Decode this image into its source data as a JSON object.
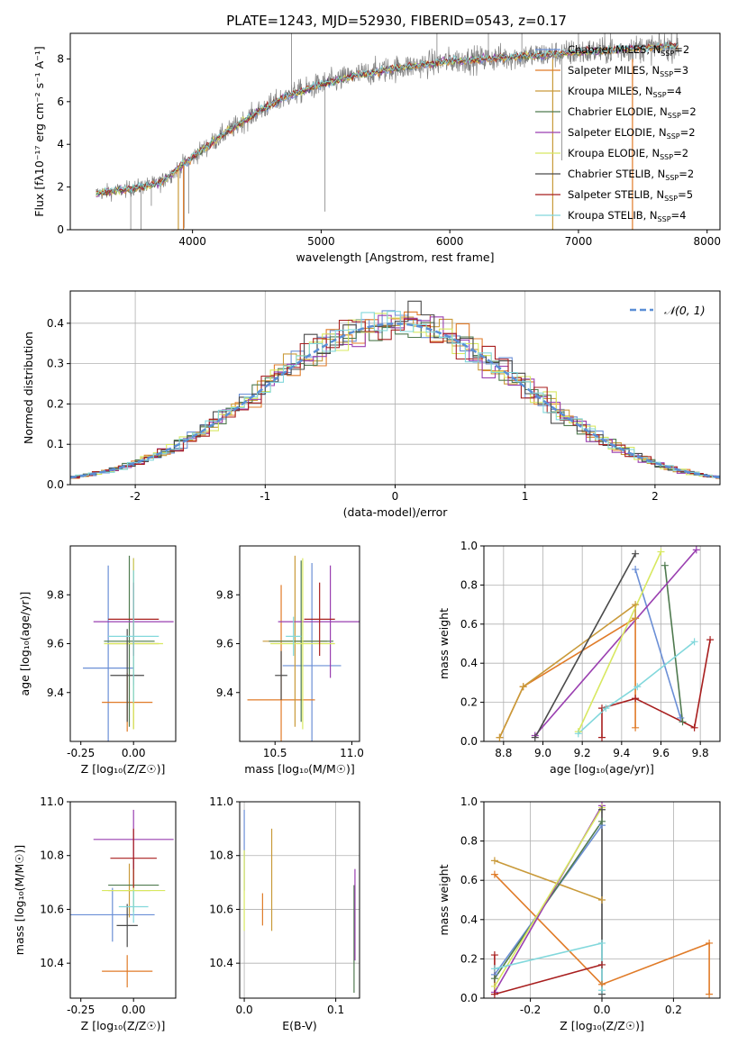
{
  "figure_title": "PLATE=1243, MJD=52930, FIBERID=0543, z=0.17",
  "colors": {
    "spectrum": "#808080",
    "normal_curve": "#5b8fd6",
    "grid": "#b0b0b0"
  },
  "models": [
    {
      "name": "Chabrier MILES, N",
      "sub": "SSP",
      "eq": "=2",
      "color": "#6b8fd6"
    },
    {
      "name": "Salpeter MILES, N",
      "sub": "SSP",
      "eq": "=3",
      "color": "#e07b28"
    },
    {
      "name": "Kroupa MILES, N",
      "sub": "SSP",
      "eq": "=4",
      "color": "#c99a3a"
    },
    {
      "name": "Chabrier ELODIE, N",
      "sub": "SSP",
      "eq": "=2",
      "color": "#4f7a4f"
    },
    {
      "name": "Salpeter ELODIE, N",
      "sub": "SSP",
      "eq": "=2",
      "color": "#9a3fb0"
    },
    {
      "name": "Kroupa ELODIE, N",
      "sub": "SSP",
      "eq": "=2",
      "color": "#d8e860"
    },
    {
      "name": "Chabrier STELIB, N",
      "sub": "SSP",
      "eq": "=2",
      "color": "#4a4a4a"
    },
    {
      "name": "Salpeter STELIB, N",
      "sub": "SSP",
      "eq": "=5",
      "color": "#a81e1e"
    },
    {
      "name": "Kroupa STELIB, N",
      "sub": "SSP",
      "eq": "=4",
      "color": "#82d8dc"
    }
  ],
  "chart_data": [
    {
      "id": "spectrum",
      "type": "line",
      "xlabel": "wavelength [Angstrom, rest frame]",
      "ylabel": "Flux [f",
      "ylabel_full": "Flux [fλ10⁻¹⁷ erg cm⁻² s⁻¹ A⁻¹]",
      "xlim": [
        3050,
        8100
      ],
      "ylim": [
        0,
        9.2
      ],
      "xticks": [
        4000,
        5000,
        6000,
        7000,
        8000
      ],
      "yticks": [
        0,
        2,
        4,
        6,
        8
      ],
      "spectrum_envelope": {
        "x": [
          3250,
          3500,
          3750,
          4000,
          4250,
          4500,
          4750,
          5000,
          5250,
          5500,
          5750,
          6000,
          6250,
          6500,
          6750,
          7000,
          7250,
          7500,
          7750
        ],
        "y": [
          1.7,
          1.9,
          2.2,
          3.4,
          4.5,
          5.5,
          6.3,
          6.8,
          7.2,
          7.5,
          7.7,
          7.9,
          8.0,
          8.1,
          8.2,
          8.3,
          8.4,
          8.5,
          8.6
        ]
      }
    },
    {
      "id": "residuals",
      "type": "histogram",
      "xlabel": "(data-model)/error",
      "ylabel": "Normed distribution",
      "xlim": [
        -2.5,
        2.5
      ],
      "ylim": [
        0,
        0.48
      ],
      "xticks": [
        -2,
        -1,
        0,
        1,
        2
      ],
      "yticks": [
        0.0,
        0.1,
        0.2,
        0.3,
        0.4
      ],
      "legend": "𝒩(0, 1)",
      "bin_width": 0.1
    },
    {
      "id": "age_vs_Z",
      "type": "errorbar",
      "xlabel": "Z [log₁₀(Z/Z☉)]",
      "ylabel": "age  [log₁₀(age/yr)]",
      "xlim": [
        -0.3,
        0.2
      ],
      "ylim": [
        9.2,
        10.0
      ],
      "xticks": [
        -0.25,
        0.0
      ],
      "yticks": [
        9.4,
        9.6,
        9.8
      ],
      "points": [
        {
          "x": -0.12,
          "xerr": 0.12,
          "y": 9.5,
          "yerr": 0.42
        },
        {
          "x": -0.03,
          "xerr": 0.12,
          "y": 9.36,
          "yerr": 0.12
        },
        {
          "x": 0.0,
          "xerr": 0.12,
          "y": 9.6,
          "yerr": 0.35
        },
        {
          "x": -0.02,
          "xerr": 0.12,
          "y": 9.61,
          "yerr": 0.35
        },
        {
          "x": -0.0,
          "xerr": 0.19,
          "y": 9.69,
          "yerr": 0.26
        },
        {
          "x": -0.0,
          "xerr": 0.14,
          "y": 9.6,
          "yerr": 0.35
        },
        {
          "x": -0.03,
          "xerr": 0.08,
          "y": 9.47,
          "yerr": 0.19
        },
        {
          "x": 0.0,
          "xerr": 0.12,
          "y": 9.7,
          "yerr": 0.15
        },
        {
          "x": 0.0,
          "xerr": 0.12,
          "y": 9.63,
          "yerr": 0.27
        }
      ]
    },
    {
      "id": "age_vs_mass",
      "type": "errorbar",
      "xlabel": "mass [log₁₀(M/M☉)]",
      "ylabel": "",
      "xlim": [
        10.27,
        11.05
      ],
      "ylim": [
        9.2,
        10.0
      ],
      "xticks": [
        10.5,
        11.0
      ],
      "yticks": [
        9.4,
        9.6,
        9.8
      ],
      "points": [
        {
          "x": 10.74,
          "xerr": 0.19,
          "y": 9.51,
          "yerr": 0.42
        },
        {
          "x": 10.54,
          "xerr": 0.22,
          "y": 9.37,
          "yerr": 0.47
        },
        {
          "x": 10.63,
          "xerr": 0.21,
          "y": 9.61,
          "yerr": 0.35
        },
        {
          "x": 10.67,
          "xerr": 0.21,
          "y": 9.61,
          "yerr": 0.33
        },
        {
          "x": 10.86,
          "xerr": 0.34,
          "y": 9.69,
          "yerr": 0.23
        },
        {
          "x": 10.68,
          "xerr": 0.21,
          "y": 9.6,
          "yerr": 0.35
        },
        {
          "x": 10.54,
          "xerr": 0.04,
          "y": 9.47,
          "yerr": 0.1
        },
        {
          "x": 10.79,
          "xerr": 0.1,
          "y": 9.7,
          "yerr": 0.15
        },
        {
          "x": 10.62,
          "xerr": 0.05,
          "y": 9.63,
          "yerr": 0.08
        }
      ]
    },
    {
      "id": "weight_vs_age",
      "type": "line",
      "xlabel": "age  [log₁₀(age/yr)]",
      "ylabel": "mass weight",
      "xlim": [
        8.7,
        9.9
      ],
      "ylim": [
        0,
        1.0
      ],
      "xticks": [
        8.8,
        9.0,
        9.2,
        9.4,
        9.6,
        9.8
      ],
      "yticks": [
        0.0,
        0.2,
        0.4,
        0.6,
        0.8,
        1.0
      ],
      "series": [
        {
          "x": [
            9.47,
            9.7
          ],
          "y": [
            0.88,
            0.12
          ]
        },
        {
          "x": [
            8.78,
            8.9,
            9.47,
            9.47
          ],
          "y": [
            0.02,
            0.28,
            0.63,
            0.07
          ]
        },
        {
          "x": [
            8.78,
            8.9,
            9.47,
            9.47
          ],
          "y": [
            0.02,
            0.28,
            0.7,
            0.63
          ]
        },
        {
          "x": [
            9.62,
            9.71
          ],
          "y": [
            0.9,
            0.1
          ]
        },
        {
          "x": [
            8.96,
            9.78
          ],
          "y": [
            0.03,
            0.98
          ]
        },
        {
          "x": [
            9.18,
            9.6
          ],
          "y": [
            0.05,
            0.97
          ]
        },
        {
          "x": [
            8.96,
            9.47
          ],
          "y": [
            0.02,
            0.96
          ]
        },
        {
          "x": [
            9.3,
            9.3,
            9.47,
            9.77,
            9.85
          ],
          "y": [
            0.02,
            0.17,
            0.22,
            0.07,
            0.52
          ]
        },
        {
          "x": [
            9.18,
            9.32,
            9.48,
            9.77
          ],
          "y": [
            0.04,
            0.17,
            0.28,
            0.51
          ]
        }
      ]
    },
    {
      "id": "mass_vs_Z",
      "type": "errorbar",
      "xlabel": "Z [log₁₀(Z/Z☉)]",
      "ylabel": "mass [log₁₀(M/M☉)]",
      "xlim": [
        -0.3,
        0.2
      ],
      "ylim": [
        10.27,
        11.0
      ],
      "xticks": [
        -0.25,
        0.0
      ],
      "yticks": [
        10.4,
        10.6,
        10.8,
        11.0
      ],
      "points": [
        {
          "x": -0.1,
          "xerr": 0.2,
          "y": 10.58,
          "yerr": 0.1
        },
        {
          "x": -0.03,
          "xerr": 0.12,
          "y": 10.37,
          "yerr": 0.06
        },
        {
          "x": -0.02,
          "xerr": 0.1,
          "y": 10.67,
          "yerr": 0.1
        },
        {
          "x": -0.0,
          "xerr": 0.12,
          "y": 10.69,
          "yerr": 0.1
        },
        {
          "x": -0.0,
          "xerr": 0.19,
          "y": 10.86,
          "yerr": 0.11
        },
        {
          "x": -0.0,
          "xerr": 0.15,
          "y": 10.67,
          "yerr": 0.08
        },
        {
          "x": -0.03,
          "xerr": 0.05,
          "y": 10.54,
          "yerr": 0.08
        },
        {
          "x": -0.0,
          "xerr": 0.11,
          "y": 10.79,
          "yerr": 0.11
        },
        {
          "x": -0.0,
          "xerr": 0.07,
          "y": 10.61,
          "yerr": 0.06
        }
      ]
    },
    {
      "id": "mass_vs_ebv",
      "type": "errorbar",
      "xlabel": "E(B-V)",
      "ylabel": "",
      "xlim": [
        -0.005,
        0.126
      ],
      "ylim": [
        10.27,
        11.0
      ],
      "xticks": [
        0.0,
        0.1
      ],
      "yticks": [
        10.4,
        10.6,
        10.8,
        11.0
      ],
      "points": [
        {
          "x": 0.0,
          "y": 10.82,
          "yerr": 0.15
        },
        {
          "x": 0.02,
          "y": 10.6,
          "yerr": 0.06
        },
        {
          "x": 0.03,
          "y": 10.71,
          "yerr": 0.19
        },
        {
          "x": 0.12,
          "y": 10.49,
          "yerr": 0.2
        },
        {
          "x": 0.121,
          "y": 10.58,
          "yerr": 0.17
        },
        {
          "x": 0.0,
          "y": 10.67,
          "yerr": 0.15
        }
      ]
    },
    {
      "id": "weight_vs_Z",
      "type": "line",
      "xlabel": "Z [log₁₀(Z/Z☉)]",
      "ylabel": "mass weight",
      "xlim": [
        -0.33,
        0.33
      ],
      "ylim": [
        0,
        1.0
      ],
      "xticks": [
        -0.2,
        0.0,
        0.2
      ],
      "yticks": [
        0.0,
        0.2,
        0.4,
        0.6,
        0.8,
        1.0
      ],
      "series": [
        {
          "x": [
            -0.3,
            0.0
          ],
          "y": [
            0.12,
            0.88
          ]
        },
        {
          "x": [
            -0.3,
            0.0,
            0.3,
            0.3
          ],
          "y": [
            0.63,
            0.07,
            0.28,
            0.02
          ]
        },
        {
          "x": [
            -0.3,
            0.0
          ],
          "y": [
            0.7,
            0.5
          ]
        },
        {
          "x": [
            -0.3,
            0.0
          ],
          "y": [
            0.1,
            0.9
          ]
        },
        {
          "x": [
            -0.3,
            0.0
          ],
          "y": [
            0.03,
            0.98
          ]
        },
        {
          "x": [
            -0.3,
            0.0
          ],
          "y": [
            0.06,
            0.97
          ]
        },
        {
          "x": [
            0.0,
            0.0
          ],
          "y": [
            0.96,
            0.02
          ]
        },
        {
          "x": [
            -0.3,
            -0.3,
            0.0
          ],
          "y": [
            0.22,
            0.02,
            0.17
          ]
        },
        {
          "x": [
            -0.3,
            0.0,
            0.0
          ],
          "y": [
            0.15,
            0.28,
            0.04
          ]
        }
      ]
    }
  ]
}
